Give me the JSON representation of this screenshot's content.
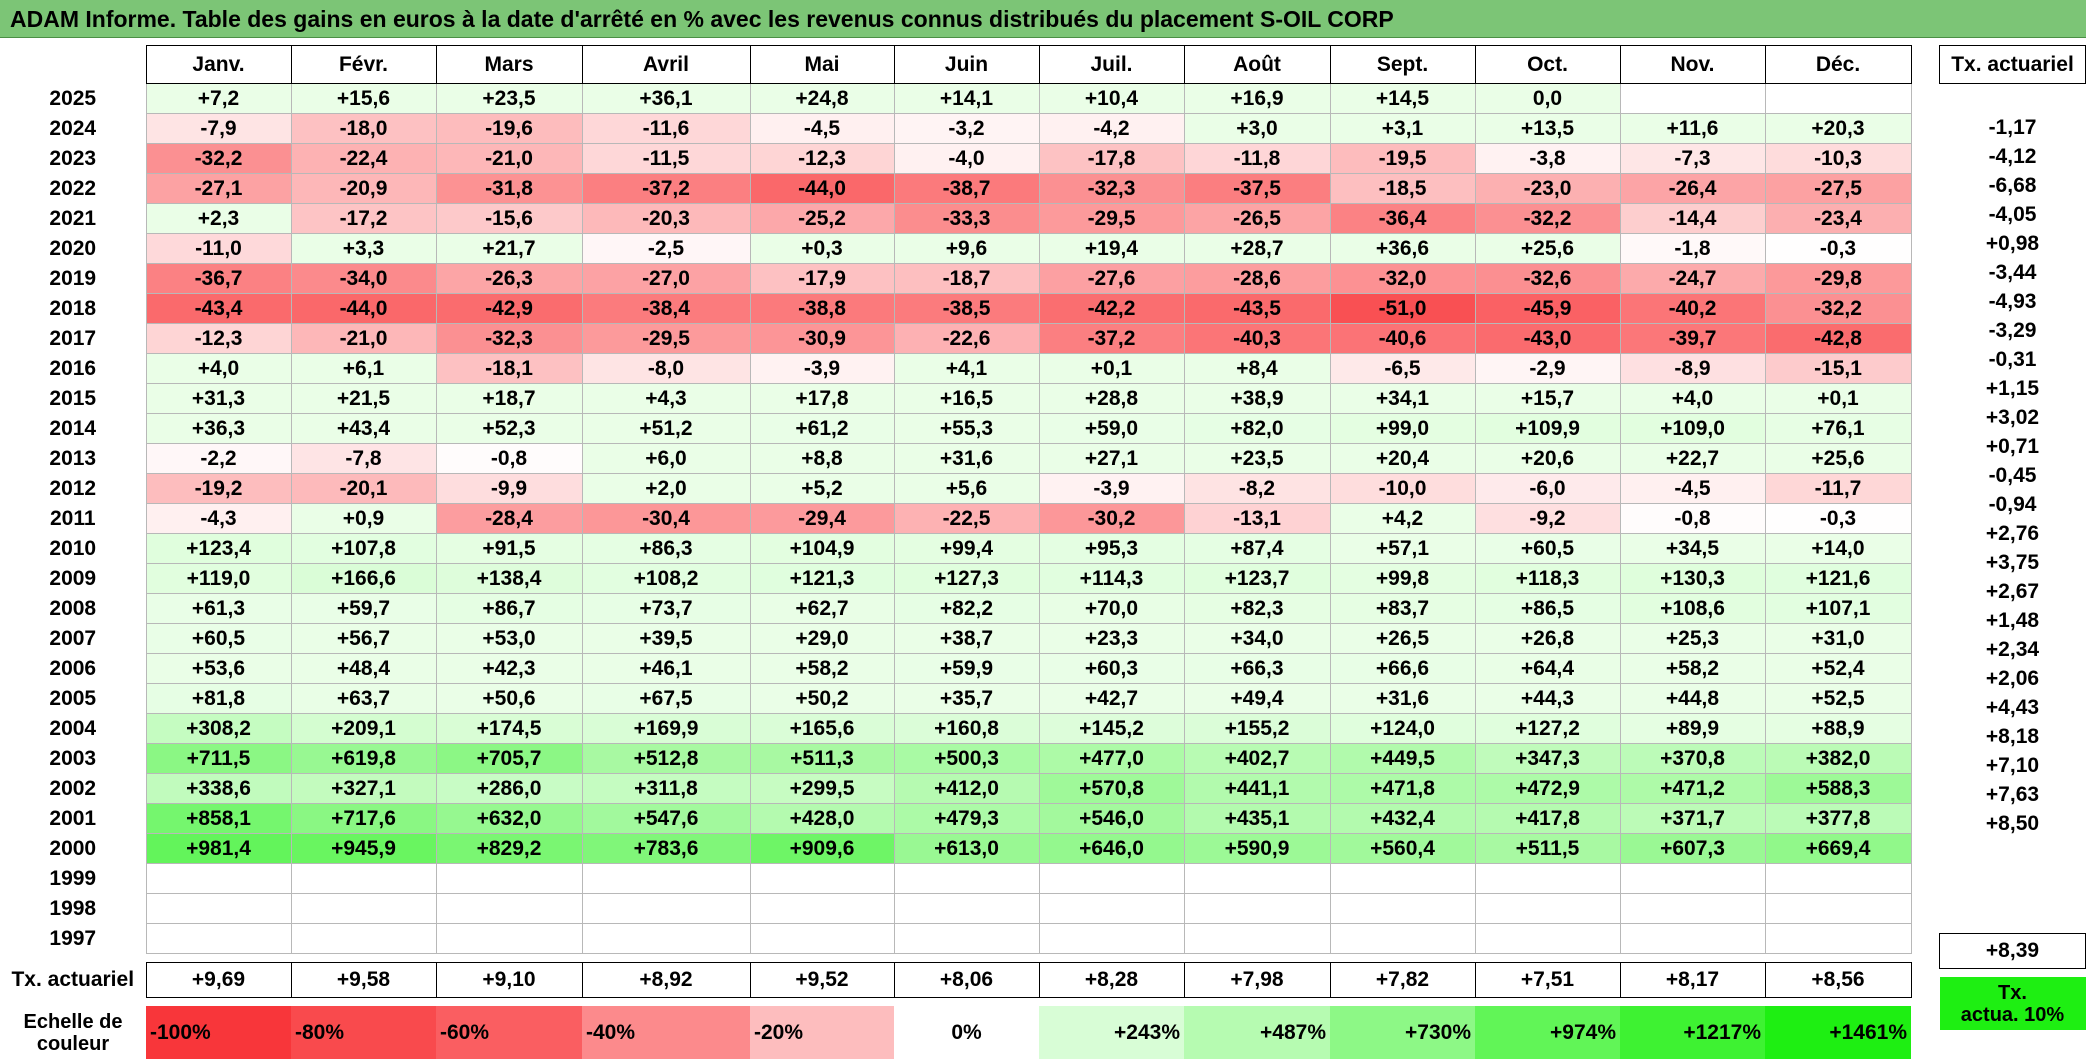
{
  "title": "ADAM Informe. Table des gains en euros à la date d'arrêté en % avec les revenus connus distribués du placement S-OIL CORP",
  "months": [
    "Janv.",
    "Févr.",
    "Mars",
    "Avril",
    "Mai",
    "Juin",
    "Juil.",
    "Août",
    "Sept.",
    "Oct.",
    "Nov.",
    "Déc."
  ],
  "actuarial_header": "Tx. actuariel",
  "rows": [
    {
      "year": "2025",
      "values": [
        "+7,2",
        "+15,6",
        "+23,5",
        "+36,1",
        "+24,8",
        "+14,1",
        "+10,4",
        "+16,9",
        "+14,5",
        "0,0",
        "",
        ""
      ],
      "rate": ""
    },
    {
      "year": "2024",
      "values": [
        "-7,9",
        "-18,0",
        "-19,6",
        "-11,6",
        "-4,5",
        "-3,2",
        "-4,2",
        "+3,0",
        "+3,1",
        "+13,5",
        "+11,6",
        "+20,3"
      ],
      "rate": "-1,17"
    },
    {
      "year": "2023",
      "values": [
        "-32,2",
        "-22,4",
        "-21,0",
        "-11,5",
        "-12,3",
        "-4,0",
        "-17,8",
        "-11,8",
        "-19,5",
        "-3,8",
        "-7,3",
        "-10,3"
      ],
      "rate": "-4,12"
    },
    {
      "year": "2022",
      "values": [
        "-27,1",
        "-20,9",
        "-31,8",
        "-37,2",
        "-44,0",
        "-38,7",
        "-32,3",
        "-37,5",
        "-18,5",
        "-23,0",
        "-26,4",
        "-27,5"
      ],
      "rate": "-6,68"
    },
    {
      "year": "2021",
      "values": [
        "+2,3",
        "-17,2",
        "-15,6",
        "-20,3",
        "-25,2",
        "-33,3",
        "-29,5",
        "-26,5",
        "-36,4",
        "-32,2",
        "-14,4",
        "-23,4"
      ],
      "rate": "-4,05"
    },
    {
      "year": "2020",
      "values": [
        "-11,0",
        "+3,3",
        "+21,7",
        "-2,5",
        "+0,3",
        "+9,6",
        "+19,4",
        "+28,7",
        "+36,6",
        "+25,6",
        "-1,8",
        "-0,3"
      ],
      "rate": "+0,98"
    },
    {
      "year": "2019",
      "values": [
        "-36,7",
        "-34,0",
        "-26,3",
        "-27,0",
        "-17,9",
        "-18,7",
        "-27,6",
        "-28,6",
        "-32,0",
        "-32,6",
        "-24,7",
        "-29,8"
      ],
      "rate": "-3,44"
    },
    {
      "year": "2018",
      "values": [
        "-43,4",
        "-44,0",
        "-42,9",
        "-38,4",
        "-38,8",
        "-38,5",
        "-42,2",
        "-43,5",
        "-51,0",
        "-45,9",
        "-40,2",
        "-32,2"
      ],
      "rate": "-4,93"
    },
    {
      "year": "2017",
      "values": [
        "-12,3",
        "-21,0",
        "-32,3",
        "-29,5",
        "-30,9",
        "-22,6",
        "-37,2",
        "-40,3",
        "-40,6",
        "-43,0",
        "-39,7",
        "-42,8"
      ],
      "rate": "-3,29"
    },
    {
      "year": "2016",
      "values": [
        "+4,0",
        "+6,1",
        "-18,1",
        "-8,0",
        "-3,9",
        "+4,1",
        "+0,1",
        "+8,4",
        "-6,5",
        "-2,9",
        "-8,9",
        "-15,1"
      ],
      "rate": "-0,31"
    },
    {
      "year": "2015",
      "values": [
        "+31,3",
        "+21,5",
        "+18,7",
        "+4,3",
        "+17,8",
        "+16,5",
        "+28,8",
        "+38,9",
        "+34,1",
        "+15,7",
        "+4,0",
        "+0,1"
      ],
      "rate": "+1,15"
    },
    {
      "year": "2014",
      "values": [
        "+36,3",
        "+43,4",
        "+52,3",
        "+51,2",
        "+61,2",
        "+55,3",
        "+59,0",
        "+82,0",
        "+99,0",
        "+109,9",
        "+109,0",
        "+76,1"
      ],
      "rate": "+3,02"
    },
    {
      "year": "2013",
      "values": [
        "-2,2",
        "-7,8",
        "-0,8",
        "+6,0",
        "+8,8",
        "+31,6",
        "+27,1",
        "+23,5",
        "+20,4",
        "+20,6",
        "+22,7",
        "+25,6"
      ],
      "rate": "+0,71"
    },
    {
      "year": "2012",
      "values": [
        "-19,2",
        "-20,1",
        "-9,9",
        "+2,0",
        "+5,2",
        "+5,6",
        "-3,9",
        "-8,2",
        "-10,0",
        "-6,0",
        "-4,5",
        "-11,7"
      ],
      "rate": "-0,45"
    },
    {
      "year": "2011",
      "values": [
        "-4,3",
        "+0,9",
        "-28,4",
        "-30,4",
        "-29,4",
        "-22,5",
        "-30,2",
        "-13,1",
        "+4,2",
        "-9,2",
        "-0,8",
        "-0,3"
      ],
      "rate": "-0,94"
    },
    {
      "year": "2010",
      "values": [
        "+123,4",
        "+107,8",
        "+91,5",
        "+86,3",
        "+104,9",
        "+99,4",
        "+95,3",
        "+87,4",
        "+57,1",
        "+60,5",
        "+34,5",
        "+14,0"
      ],
      "rate": "+2,76"
    },
    {
      "year": "2009",
      "values": [
        "+119,0",
        "+166,6",
        "+138,4",
        "+108,2",
        "+121,3",
        "+127,3",
        "+114,3",
        "+123,7",
        "+99,8",
        "+118,3",
        "+130,3",
        "+121,6"
      ],
      "rate": "+3,75"
    },
    {
      "year": "2008",
      "values": [
        "+61,3",
        "+59,7",
        "+86,7",
        "+73,7",
        "+62,7",
        "+82,2",
        "+70,0",
        "+82,3",
        "+83,7",
        "+86,5",
        "+108,6",
        "+107,1"
      ],
      "rate": "+2,67"
    },
    {
      "year": "2007",
      "values": [
        "+60,5",
        "+56,7",
        "+53,0",
        "+39,5",
        "+29,0",
        "+38,7",
        "+23,3",
        "+34,0",
        "+26,5",
        "+26,8",
        "+25,3",
        "+31,0"
      ],
      "rate": "+1,48"
    },
    {
      "year": "2006",
      "values": [
        "+53,6",
        "+48,4",
        "+42,3",
        "+46,1",
        "+58,2",
        "+59,9",
        "+60,3",
        "+66,3",
        "+66,6",
        "+64,4",
        "+58,2",
        "+52,4"
      ],
      "rate": "+2,34"
    },
    {
      "year": "2005",
      "values": [
        "+81,8",
        "+63,7",
        "+50,6",
        "+67,5",
        "+50,2",
        "+35,7",
        "+42,7",
        "+49,4",
        "+31,6",
        "+44,3",
        "+44,8",
        "+52,5"
      ],
      "rate": "+2,06"
    },
    {
      "year": "2004",
      "values": [
        "+308,2",
        "+209,1",
        "+174,5",
        "+169,9",
        "+165,6",
        "+160,8",
        "+145,2",
        "+155,2",
        "+124,0",
        "+127,2",
        "+89,9",
        "+88,9"
      ],
      "rate": "+4,43"
    },
    {
      "year": "2003",
      "values": [
        "+711,5",
        "+619,8",
        "+705,7",
        "+512,8",
        "+511,3",
        "+500,3",
        "+477,0",
        "+402,7",
        "+449,5",
        "+347,3",
        "+370,8",
        "+382,0"
      ],
      "rate": "+8,18"
    },
    {
      "year": "2002",
      "values": [
        "+338,6",
        "+327,1",
        "+286,0",
        "+311,8",
        "+299,5",
        "+412,0",
        "+570,8",
        "+441,1",
        "+471,8",
        "+472,9",
        "+471,2",
        "+588,3"
      ],
      "rate": "+7,10"
    },
    {
      "year": "2001",
      "values": [
        "+858,1",
        "+717,6",
        "+632,0",
        "+547,6",
        "+428,0",
        "+479,3",
        "+546,0",
        "+435,1",
        "+432,4",
        "+417,8",
        "+371,7",
        "+377,8"
      ],
      "rate": "+7,63"
    },
    {
      "year": "2000",
      "values": [
        "+981,4",
        "+945,9",
        "+829,2",
        "+783,6",
        "+909,6",
        "+613,0",
        "+646,0",
        "+590,9",
        "+560,4",
        "+511,5",
        "+607,3",
        "+669,4"
      ],
      "rate": "+8,50"
    },
    {
      "year": "1999",
      "values": [
        "",
        "",
        "",
        "",
        "",
        "",
        "",
        "",
        "",
        "",
        "",
        ""
      ],
      "rate": ""
    },
    {
      "year": "1998",
      "values": [
        "",
        "",
        "",
        "",
        "",
        "",
        "",
        "",
        "",
        "",
        "",
        ""
      ],
      "rate": ""
    },
    {
      "year": "1997",
      "values": [
        "",
        "",
        "",
        "",
        "",
        "",
        "",
        "",
        "",
        "",
        "",
        ""
      ],
      "rate": ""
    }
  ],
  "actuarial_row": {
    "label": "Tx. actuariel",
    "values": [
      "+9,69",
      "+9,58",
      "+9,10",
      "+8,92",
      "+9,52",
      "+8,06",
      "+8,28",
      "+7,98",
      "+7,82",
      "+7,51",
      "+8,17",
      "+8,56"
    ],
    "total": "+8,39"
  },
  "scale": {
    "label_line1": "Echelle de",
    "label_line2": "couleur",
    "steps": [
      {
        "text": "-100%",
        "color": "#f8363a"
      },
      {
        "text": "-80%",
        "color": "#f94a4d"
      },
      {
        "text": "-60%",
        "color": "#fa5e61"
      },
      {
        "text": "-40%",
        "color": "#fc8a8c"
      },
      {
        "text": "-20%",
        "color": "#fdbdbe"
      },
      {
        "text": "0%",
        "color": "#ffffff"
      },
      {
        "text": "+243%",
        "color": "#d8fdd6"
      },
      {
        "text": "+487%",
        "color": "#b6fbb1"
      },
      {
        "text": "+730%",
        "color": "#8df886"
      },
      {
        "text": "+974%",
        "color": "#61f557"
      },
      {
        "text": "+1217%",
        "color": "#3ef232"
      },
      {
        "text": "+1461%",
        "color": "#1eef12"
      }
    ],
    "legend_line1": "Tx.",
    "legend_line2": "actua. 10%",
    "legend_color": "#1eef12"
  },
  "colors": {
    "title_bg": "#7cc576",
    "negative_max": "#f8363a",
    "positive_max": "#1eef12"
  }
}
